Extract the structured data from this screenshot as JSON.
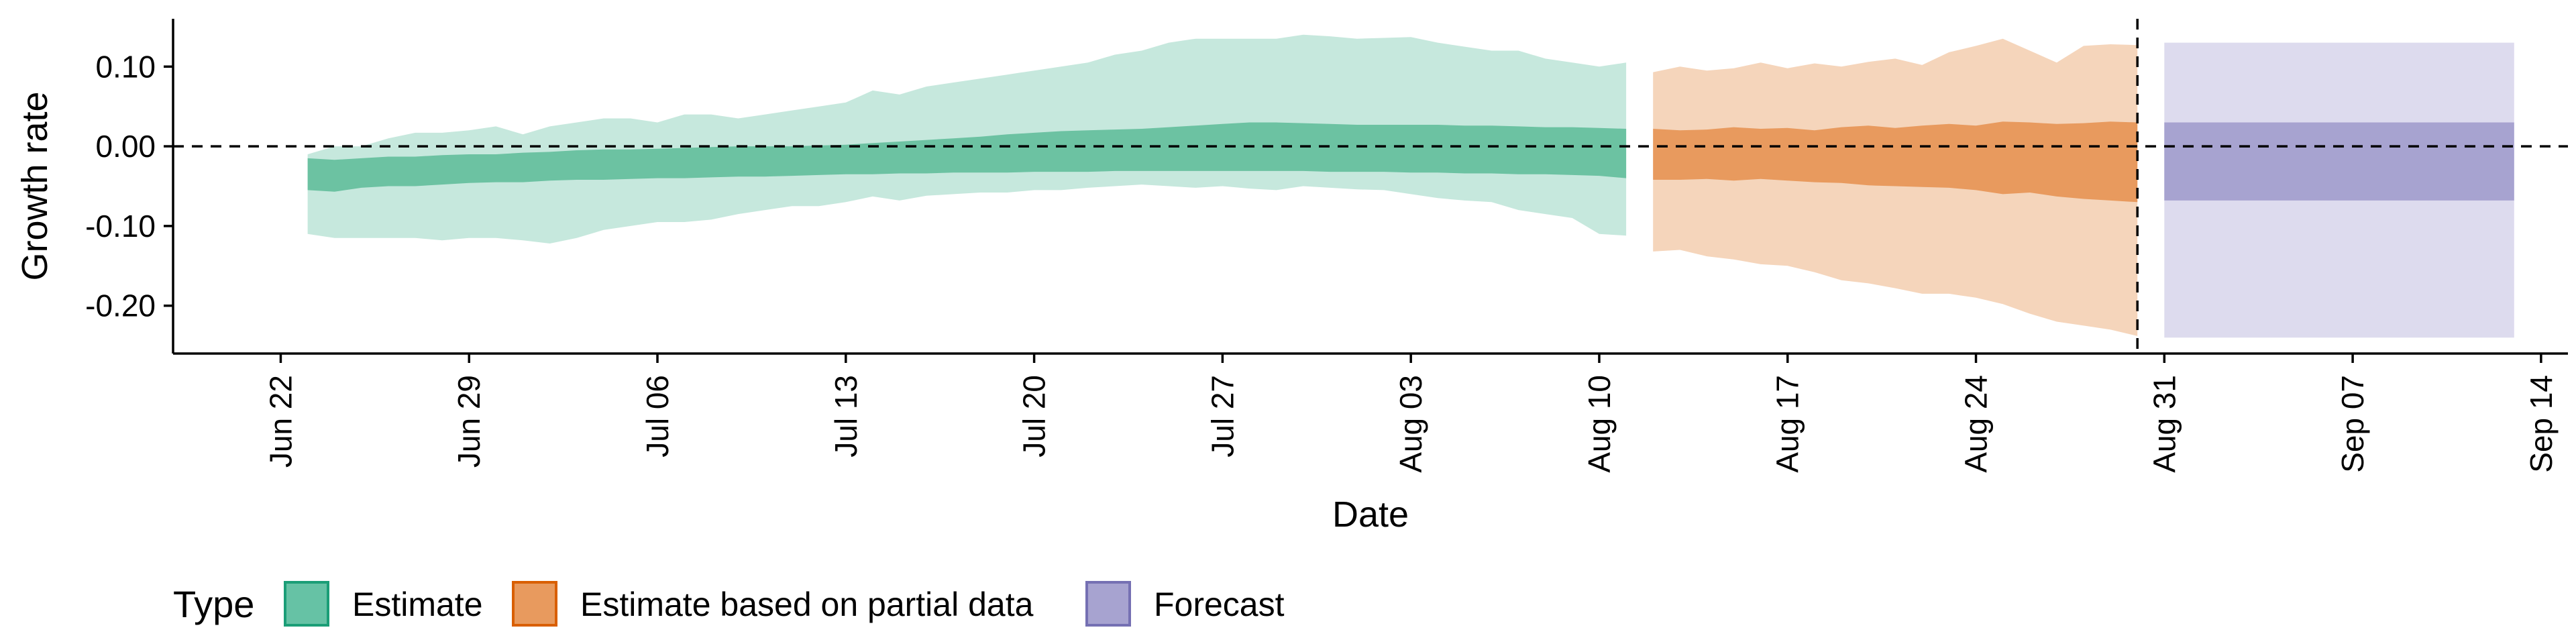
{
  "chart_data": {
    "type": "area",
    "xlabel": "Date",
    "ylabel": "Growth rate",
    "ylim": [
      -0.26,
      0.16
    ],
    "yticks": [
      0.1,
      0.0,
      -0.1,
      -0.2
    ],
    "ytick_labels": [
      "0.10",
      "0.00",
      "-0.10",
      "-0.20"
    ],
    "xlim": [
      "2020-06-18",
      "2020-09-15"
    ],
    "xticks": [
      "2020-06-22",
      "2020-06-29",
      "2020-07-06",
      "2020-07-13",
      "2020-07-20",
      "2020-07-27",
      "2020-08-03",
      "2020-08-10",
      "2020-08-17",
      "2020-08-24",
      "2020-08-31",
      "2020-09-07",
      "2020-09-14"
    ],
    "xtick_labels": [
      "Jun 22",
      "Jun 29",
      "Jul 06",
      "Jul 13",
      "Jul 20",
      "Jul 27",
      "Aug 03",
      "Aug 10",
      "Aug 17",
      "Aug 24",
      "Aug 31",
      "Sep 07",
      "Sep 14"
    ],
    "reference_lines": {
      "horizontal_y": 0.0,
      "vertical_date": "2020-08-30"
    },
    "legend": {
      "title": "Type",
      "position": "bottom",
      "entries": [
        {
          "label": "Estimate",
          "fill": "#66c2a5",
          "border": "#1b9e77"
        },
        {
          "label": "Estimate based on partial data",
          "fill": "#e89a5e",
          "border": "#d95f02"
        },
        {
          "label": "Forecast",
          "fill": "#a7a3d0",
          "border": "#7570b3"
        }
      ]
    },
    "series": [
      {
        "name": "Estimate",
        "color_outer": "#c6e8dd",
        "color_inner": "#6cc2a2",
        "x": [
          "2020-06-23",
          "2020-06-24",
          "2020-06-25",
          "2020-06-26",
          "2020-06-27",
          "2020-06-28",
          "2020-06-29",
          "2020-06-30",
          "2020-07-01",
          "2020-07-02",
          "2020-07-03",
          "2020-07-04",
          "2020-07-05",
          "2020-07-06",
          "2020-07-07",
          "2020-07-08",
          "2020-07-09",
          "2020-07-10",
          "2020-07-11",
          "2020-07-12",
          "2020-07-13",
          "2020-07-14",
          "2020-07-15",
          "2020-07-16",
          "2020-07-17",
          "2020-07-18",
          "2020-07-19",
          "2020-07-20",
          "2020-07-21",
          "2020-07-22",
          "2020-07-23",
          "2020-07-24",
          "2020-07-25",
          "2020-07-26",
          "2020-07-27",
          "2020-07-28",
          "2020-07-29",
          "2020-07-30",
          "2020-07-31",
          "2020-08-01",
          "2020-08-02",
          "2020-08-03",
          "2020-08-04",
          "2020-08-05",
          "2020-08-06",
          "2020-08-07",
          "2020-08-08",
          "2020-08-09",
          "2020-08-10",
          "2020-08-11"
        ],
        "upper90": [
          -0.01,
          0.0,
          0.0,
          0.01,
          0.017,
          0.017,
          0.02,
          0.025,
          0.015,
          0.025,
          0.03,
          0.035,
          0.035,
          0.03,
          0.04,
          0.04,
          0.035,
          0.04,
          0.045,
          0.05,
          0.055,
          0.07,
          0.065,
          0.075,
          0.08,
          0.085,
          0.09,
          0.095,
          0.1,
          0.105,
          0.115,
          0.12,
          0.13,
          0.135,
          0.135,
          0.135,
          0.135,
          0.14,
          0.138,
          0.135,
          0.136,
          0.137,
          0.13,
          0.125,
          0.12,
          0.12,
          0.11,
          0.105,
          0.1,
          0.105
        ],
        "upper50": [
          -0.015,
          -0.017,
          -0.015,
          -0.013,
          -0.013,
          -0.011,
          -0.01,
          -0.01,
          -0.008,
          -0.007,
          -0.005,
          -0.004,
          -0.004,
          -0.003,
          -0.002,
          -0.001,
          0.0,
          0.0,
          0.0,
          0.001,
          0.002,
          0.004,
          0.006,
          0.008,
          0.01,
          0.012,
          0.015,
          0.017,
          0.019,
          0.02,
          0.021,
          0.022,
          0.024,
          0.026,
          0.028,
          0.03,
          0.03,
          0.029,
          0.028,
          0.027,
          0.027,
          0.027,
          0.027,
          0.026,
          0.026,
          0.025,
          0.024,
          0.024,
          0.023,
          0.022
        ],
        "lower50": [
          -0.055,
          -0.057,
          -0.052,
          -0.05,
          -0.05,
          -0.048,
          -0.046,
          -0.045,
          -0.045,
          -0.043,
          -0.042,
          -0.042,
          -0.041,
          -0.04,
          -0.04,
          -0.039,
          -0.038,
          -0.038,
          -0.037,
          -0.036,
          -0.035,
          -0.035,
          -0.034,
          -0.034,
          -0.033,
          -0.033,
          -0.033,
          -0.032,
          -0.032,
          -0.032,
          -0.031,
          -0.031,
          -0.031,
          -0.031,
          -0.031,
          -0.031,
          -0.031,
          -0.031,
          -0.032,
          -0.032,
          -0.032,
          -0.033,
          -0.033,
          -0.034,
          -0.034,
          -0.035,
          -0.035,
          -0.036,
          -0.037,
          -0.04
        ],
        "lower90": [
          -0.11,
          -0.115,
          -0.115,
          -0.115,
          -0.115,
          -0.118,
          -0.115,
          -0.115,
          -0.118,
          -0.122,
          -0.115,
          -0.105,
          -0.1,
          -0.095,
          -0.095,
          -0.092,
          -0.085,
          -0.08,
          -0.075,
          -0.075,
          -0.07,
          -0.063,
          -0.068,
          -0.062,
          -0.06,
          -0.058,
          -0.058,
          -0.055,
          -0.055,
          -0.052,
          -0.05,
          -0.048,
          -0.05,
          -0.052,
          -0.05,
          -0.053,
          -0.055,
          -0.05,
          -0.052,
          -0.054,
          -0.055,
          -0.06,
          -0.065,
          -0.068,
          -0.07,
          -0.08,
          -0.085,
          -0.09,
          -0.11,
          -0.112
        ]
      },
      {
        "name": "Estimate based on partial data",
        "color_outer": "#f5d5bb",
        "color_inner": "#e89a5e",
        "x": [
          "2020-08-12",
          "2020-08-13",
          "2020-08-14",
          "2020-08-15",
          "2020-08-16",
          "2020-08-17",
          "2020-08-18",
          "2020-08-19",
          "2020-08-20",
          "2020-08-21",
          "2020-08-22",
          "2020-08-23",
          "2020-08-24",
          "2020-08-25",
          "2020-08-26",
          "2020-08-27",
          "2020-08-28",
          "2020-08-29",
          "2020-08-30"
        ],
        "upper90": [
          0.093,
          0.1,
          0.095,
          0.098,
          0.105,
          0.098,
          0.104,
          0.1,
          0.106,
          0.11,
          0.102,
          0.118,
          0.126,
          0.135,
          0.12,
          0.105,
          0.126,
          0.128,
          0.127
        ],
        "upper50": [
          0.022,
          0.02,
          0.021,
          0.024,
          0.022,
          0.023,
          0.02,
          0.024,
          0.026,
          0.023,
          0.026,
          0.028,
          0.026,
          0.031,
          0.03,
          0.028,
          0.029,
          0.031,
          0.03
        ],
        "lower50": [
          -0.042,
          -0.042,
          -0.041,
          -0.043,
          -0.041,
          -0.043,
          -0.045,
          -0.046,
          -0.049,
          -0.05,
          -0.051,
          -0.052,
          -0.055,
          -0.06,
          -0.058,
          -0.063,
          -0.066,
          -0.068,
          -0.07
        ],
        "lower90": [
          -0.132,
          -0.13,
          -0.138,
          -0.142,
          -0.148,
          -0.15,
          -0.158,
          -0.168,
          -0.172,
          -0.178,
          -0.185,
          -0.185,
          -0.19,
          -0.198,
          -0.21,
          -0.22,
          -0.225,
          -0.23,
          -0.238
        ]
      },
      {
        "name": "Forecast",
        "color_outer": "#dddbee",
        "color_inner": "#a7a3d0",
        "x": [
          "2020-08-31",
          "2020-09-01",
          "2020-09-02",
          "2020-09-03",
          "2020-09-04",
          "2020-09-05",
          "2020-09-06",
          "2020-09-07",
          "2020-09-08",
          "2020-09-09",
          "2020-09-10",
          "2020-09-11",
          "2020-09-12",
          "2020-09-13"
        ],
        "upper90": [
          0.13,
          0.13,
          0.13,
          0.13,
          0.13,
          0.13,
          0.13,
          0.13,
          0.13,
          0.13,
          0.13,
          0.13,
          0.13,
          0.13
        ],
        "upper50": [
          0.03,
          0.03,
          0.03,
          0.03,
          0.03,
          0.03,
          0.03,
          0.03,
          0.03,
          0.03,
          0.03,
          0.03,
          0.03,
          0.03
        ],
        "lower50": [
          -0.068,
          -0.068,
          -0.068,
          -0.068,
          -0.068,
          -0.068,
          -0.068,
          -0.068,
          -0.068,
          -0.068,
          -0.068,
          -0.068,
          -0.068,
          -0.068
        ],
        "lower90": [
          -0.24,
          -0.24,
          -0.24,
          -0.24,
          -0.24,
          -0.24,
          -0.24,
          -0.24,
          -0.24,
          -0.24,
          -0.24,
          -0.24,
          -0.24,
          -0.24
        ]
      }
    ]
  }
}
